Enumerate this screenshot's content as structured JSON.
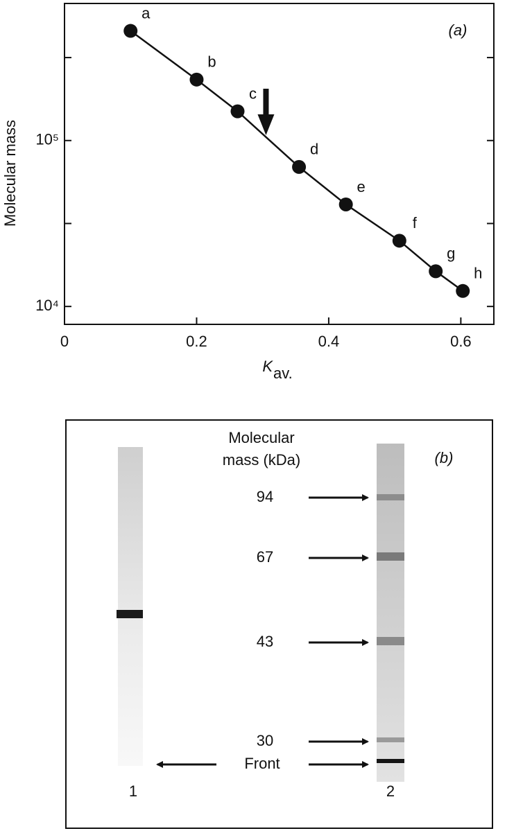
{
  "chart_data": {
    "type": "scatter",
    "panel_label": "(a)",
    "ylabel": "Molecular mass",
    "xlabel_symbol": "K",
    "xlabel_subscript": "av.",
    "x": [
      0.1,
      0.2,
      0.262,
      0.355,
      0.426,
      0.507,
      0.562,
      0.603
    ],
    "values": [
      458000,
      233000,
      150000,
      69300,
      41200,
      24900,
      16300,
      12400
    ],
    "point_labels": [
      "a",
      "b",
      "c",
      "d",
      "e",
      "f",
      "g",
      "h"
    ],
    "color": "#111111",
    "arrow_x": 0.305,
    "xlim": [
      0,
      0.65
    ],
    "ylim": [
      7800,
      670000
    ],
    "log_y": true,
    "xticks": [
      0,
      0.2,
      0.4,
      0.6
    ],
    "yticks": [
      {
        "value": 10000,
        "label": "10⁴"
      },
      {
        "value": 100000,
        "label": "10⁵"
      }
    ],
    "minor_yticks": [
      31623,
      316228
    ]
  },
  "gel": {
    "panel_label": "(b)",
    "header_line1": "Molecular",
    "header_line2": "mass (kDa)",
    "markers": [
      "94",
      "67",
      "43",
      "30"
    ],
    "front_label": "Front",
    "lanes": [
      "1",
      "2"
    ]
  }
}
